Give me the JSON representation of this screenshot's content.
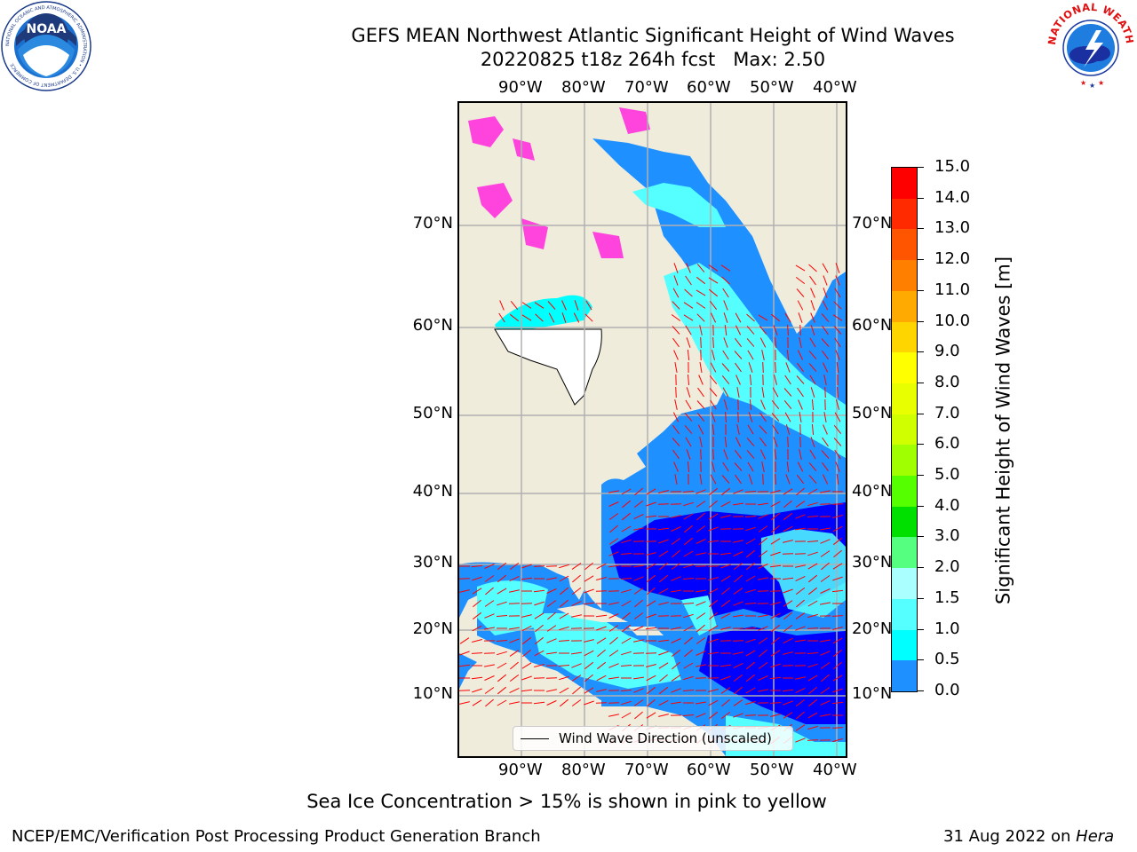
{
  "header": {
    "title_line1": "GEFS MEAN Northwest Atlantic Significant Height of Wind Waves",
    "title_line2": "20220825 t18z 264h fcst   Max: 2.50"
  },
  "logos": {
    "noaa_text": "NOAA",
    "noaa_ring_text": "NATIONAL OCEANIC AND ATMOSPHERIC ADMINISTRATION • U.S. DEPARTMENT OF COMMERCE",
    "nws_ring_text": "NATIONAL WEATHER SERVICE"
  },
  "map": {
    "lon_labels": [
      "90°W",
      "80°W",
      "70°W",
      "60°W",
      "50°W",
      "40°W"
    ],
    "lat_labels": [
      "70°N",
      "60°N",
      "50°N",
      "40°N",
      "30°N",
      "20°N",
      "10°N"
    ],
    "legend_label": "Wind Wave Direction (unscaled)",
    "land_color": "#efecdc",
    "vector_color": "#ff0000",
    "ice_color": "#ff44dd"
  },
  "colorbar": {
    "title": "Significant Height of Wind Waves [m]",
    "tick_labels": [
      "15.0",
      "14.0",
      "13.0",
      "12.0",
      "11.0",
      "10.0",
      "9.0",
      "8.0",
      "7.0",
      "6.0",
      "5.0",
      "4.0",
      "3.0",
      "2.0",
      "1.5",
      "1.0",
      "0.5",
      "0.0"
    ],
    "colors": [
      "#ff0000",
      "#ff2a00",
      "#ff5500",
      "#ff8000",
      "#ffaa00",
      "#ffd500",
      "#ffff00",
      "#e8ff00",
      "#d0ff00",
      "#a0ff00",
      "#55ff00",
      "#00e000",
      "#55ff80",
      "#aaffff",
      "#55ffff",
      "#00ffff",
      "#1e90ff",
      "#0000ff"
    ]
  },
  "footer": {
    "note": "Sea Ice Concentration > 15% is shown in pink to yellow",
    "credit": "NCEP/EMC/Verification Post Processing Product Generation Branch",
    "date": "31 Aug 2022 on ",
    "machine": "Hera"
  }
}
